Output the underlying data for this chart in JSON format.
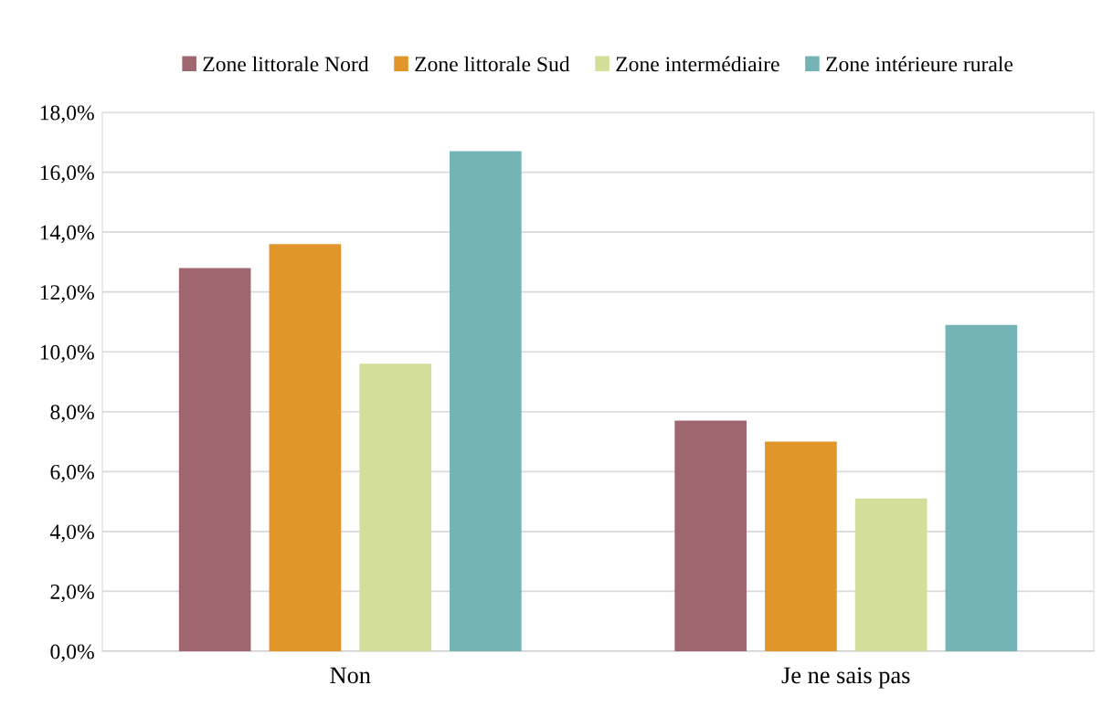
{
  "chart_data": {
    "type": "bar",
    "categories": [
      "Non",
      "Je ne sais pas"
    ],
    "series": [
      {
        "name": "Zone littorale Nord",
        "color": "#a0666f",
        "values": [
          12.8,
          7.7
        ]
      },
      {
        "name": "Zone littorale Sud",
        "color": "#e0962a",
        "values": [
          13.6,
          7.0
        ]
      },
      {
        "name": "Zone intermédiaire",
        "color": "#d2de99",
        "values": [
          9.6,
          5.1
        ]
      },
      {
        "name": "Zone intérieure rurale",
        "color": "#74b4b6",
        "values": [
          16.7,
          10.9
        ]
      }
    ],
    "ylim": [
      0,
      18
    ],
    "yticks": [
      {
        "value": 0,
        "label": "0,0%"
      },
      {
        "value": 2,
        "label": "2,0%"
      },
      {
        "value": 4,
        "label": "4,0%"
      },
      {
        "value": 6,
        "label": "6,0%"
      },
      {
        "value": 8,
        "label": "8,0%"
      },
      {
        "value": 10,
        "label": "10,0%"
      },
      {
        "value": 12,
        "label": "12,0%"
      },
      {
        "value": 14,
        "label": "14,0%"
      },
      {
        "value": 16,
        "label": "16,0%"
      },
      {
        "value": 18,
        "label": "18,0%"
      }
    ],
    "grid": "y",
    "legend": "top"
  }
}
